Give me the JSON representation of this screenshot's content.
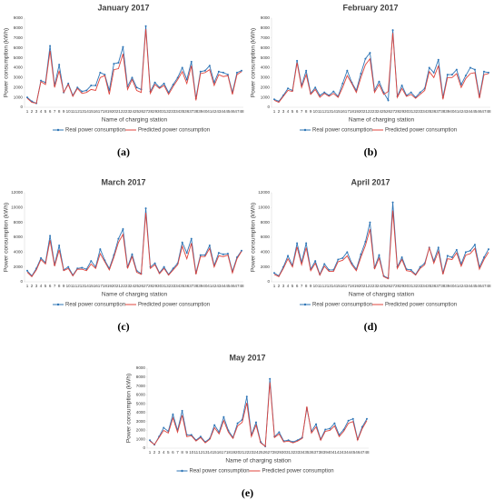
{
  "chart_data": [
    {
      "type": "line",
      "title": "January 2017",
      "xlabel": "Name of charging station",
      "ylabel": "Power consumption (kWh)",
      "label": "(a)",
      "categories": [
        "1",
        "2",
        "3",
        "4",
        "5",
        "6",
        "7",
        "8",
        "9",
        "10",
        "11",
        "12",
        "13",
        "14",
        "15",
        "16",
        "17",
        "18",
        "19",
        "20",
        "21",
        "22",
        "23",
        "24",
        "25",
        "26",
        "27",
        "28",
        "29",
        "30",
        "31",
        "32",
        "33",
        "34",
        "35",
        "36",
        "37",
        "38",
        "39",
        "40",
        "41",
        "42",
        "43",
        "44",
        "45",
        "46",
        "47",
        "48"
      ],
      "series": [
        {
          "name": "Real power consumption",
          "color": "#2e75b6",
          "values": [
            1000,
            600,
            400,
            2700,
            2500,
            6200,
            2200,
            4300,
            1500,
            2400,
            1200,
            2000,
            1600,
            1700,
            2200,
            2200,
            3500,
            3300,
            1700,
            4400,
            4500,
            6100,
            2100,
            3000,
            2000,
            1800,
            8200,
            1600,
            2500,
            2000,
            2400,
            1500,
            2300,
            3000,
            4000,
            2800,
            4600,
            900,
            3600,
            3700,
            4200,
            2500,
            3600,
            3500,
            3300,
            1500,
            3500,
            3700
          ]
        },
        {
          "name": "Predicted power consumption",
          "color": "#e0443c",
          "values": [
            900,
            500,
            400,
            2600,
            2300,
            5700,
            2000,
            3700,
            1500,
            2300,
            1100,
            1900,
            1400,
            1500,
            1800,
            1700,
            3000,
            3200,
            1300,
            3800,
            3900,
            5400,
            1800,
            2800,
            1700,
            1500,
            7900,
            1400,
            2300,
            1900,
            2200,
            1300,
            2100,
            2800,
            3600,
            2400,
            4200,
            700,
            3400,
            3500,
            3800,
            2200,
            3300,
            3100,
            3200,
            1300,
            3300,
            3600
          ]
        }
      ],
      "ylim": [
        0,
        9000
      ],
      "yticks": [
        0,
        1000,
        2000,
        3000,
        4000,
        5000,
        6000,
        7000,
        8000,
        9000
      ],
      "grid": false
    },
    {
      "type": "line",
      "title": "February 2017",
      "xlabel": "Name of charging station",
      "ylabel": "Power consumption (kWh)",
      "label": "(b)",
      "categories": [
        "1",
        "2",
        "3",
        "4",
        "5",
        "6",
        "7",
        "8",
        "9",
        "10",
        "11",
        "12",
        "13",
        "14",
        "15",
        "16",
        "17",
        "18",
        "19",
        "20",
        "21",
        "22",
        "23",
        "24",
        "25",
        "26",
        "27",
        "28",
        "29",
        "30",
        "31",
        "32",
        "33",
        "34",
        "35",
        "36",
        "37",
        "38",
        "39",
        "40",
        "41",
        "42",
        "43",
        "44",
        "45",
        "46",
        "47",
        "48"
      ],
      "series": [
        {
          "name": "Real power consumption",
          "color": "#2e75b6",
          "values": [
            800,
            600,
            1200,
            1900,
            1700,
            4700,
            2200,
            3700,
            1400,
            2000,
            1200,
            1500,
            1200,
            1600,
            1100,
            2400,
            3700,
            2500,
            1700,
            3400,
            4900,
            5500,
            1700,
            2600,
            1500,
            700,
            7800,
            1100,
            2200,
            1200,
            1500,
            1000,
            1500,
            1900,
            4000,
            3500,
            4800,
            1000,
            3300,
            3300,
            3800,
            2300,
            3200,
            4000,
            3800,
            1100,
            3600,
            3500
          ]
        },
        {
          "name": "Predicted power consumption",
          "color": "#e0443c",
          "values": [
            700,
            500,
            1100,
            1700,
            1600,
            4500,
            2000,
            3300,
            1300,
            1800,
            1000,
            1400,
            1100,
            1400,
            1000,
            2000,
            3200,
            2400,
            1500,
            3000,
            4300,
            4900,
            1500,
            2300,
            1300,
            1600,
            7500,
            1000,
            1900,
            1100,
            1300,
            900,
            1300,
            1700,
            3600,
            3000,
            4200,
            800,
            3000,
            3000,
            3400,
            2000,
            2900,
            3400,
            3500,
            900,
            3300,
            3400
          ]
        }
      ],
      "ylim": [
        0,
        9000
      ],
      "yticks": [
        0,
        1000,
        2000,
        3000,
        4000,
        5000,
        6000,
        7000,
        8000,
        9000
      ],
      "grid": false
    },
    {
      "type": "line",
      "title": "March 2017",
      "xlabel": "Name of charging station",
      "ylabel": "Power consumption (kWh)",
      "label": "(c)",
      "categories": [
        "1",
        "2",
        "3",
        "4",
        "5",
        "6",
        "7",
        "8",
        "9",
        "10",
        "11",
        "12",
        "13",
        "14",
        "15",
        "16",
        "17",
        "18",
        "19",
        "20",
        "21",
        "22",
        "23",
        "24",
        "25",
        "26",
        "27",
        "28",
        "29",
        "30",
        "31",
        "32",
        "33",
        "34",
        "35",
        "36",
        "37",
        "38",
        "39",
        "40",
        "41",
        "42",
        "43",
        "44",
        "45",
        "46",
        "47",
        "48"
      ],
      "series": [
        {
          "name": "Real power consumption",
          "color": "#2e75b6",
          "values": [
            1500,
            800,
            1800,
            3200,
            2600,
            6200,
            2300,
            4900,
            1600,
            2000,
            900,
            1800,
            1900,
            1700,
            2800,
            2000,
            4400,
            2900,
            1800,
            3600,
            5800,
            7100,
            2000,
            3700,
            1500,
            1100,
            9900,
            2000,
            2500,
            1200,
            2000,
            1000,
            1800,
            2500,
            5300,
            3900,
            5800,
            1200,
            3600,
            3600,
            4900,
            2200,
            3900,
            3700,
            3800,
            1400,
            3300,
            4200
          ]
        },
        {
          "name": "Predicted power consumption",
          "color": "#e0443c",
          "values": [
            1300,
            700,
            1600,
            3000,
            2400,
            5600,
            2100,
            4300,
            1500,
            1800,
            800,
            1700,
            1700,
            1500,
            2400,
            1800,
            3800,
            2700,
            1600,
            3300,
            5300,
            6400,
            1800,
            3400,
            1300,
            1000,
            9300,
            1800,
            2300,
            1100,
            1800,
            900,
            1600,
            2300,
            4800,
            3100,
            5200,
            1000,
            3400,
            3400,
            4500,
            2000,
            3500,
            3400,
            3600,
            1200,
            3100,
            4100
          ]
        }
      ],
      "ylim": [
        0,
        12000
      ],
      "yticks": [
        0,
        2000,
        4000,
        6000,
        8000,
        10000,
        12000
      ],
      "grid": false
    },
    {
      "type": "line",
      "title": "April 2017",
      "xlabel": "Name of charging station",
      "ylabel": "Power consumption (kWh)",
      "label": "(d)",
      "categories": [
        "1",
        "2",
        "3",
        "4",
        "5",
        "6",
        "7",
        "8",
        "9",
        "10",
        "11",
        "12",
        "13",
        "14",
        "15",
        "16",
        "17",
        "18",
        "19",
        "20",
        "21",
        "22",
        "23",
        "24",
        "25",
        "26",
        "27",
        "28",
        "29",
        "30",
        "31",
        "32",
        "33",
        "34",
        "35",
        "36",
        "37",
        "38",
        "39",
        "40",
        "41",
        "42",
        "43",
        "44",
        "45",
        "46",
        "47",
        "48"
      ],
      "series": [
        {
          "name": "Real power consumption",
          "color": "#2e75b6",
          "values": [
            1200,
            800,
            2000,
            3500,
            2200,
            5200,
            2600,
            5200,
            1700,
            2800,
            1000,
            2400,
            1600,
            1600,
            3000,
            3200,
            4000,
            2500,
            1700,
            3700,
            5400,
            8000,
            1900,
            3600,
            800,
            500,
            10700,
            2000,
            3300,
            1700,
            1600,
            1000,
            2000,
            2500,
            4600,
            2800,
            4600,
            1200,
            3500,
            3300,
            4300,
            2400,
            4000,
            4200,
            5000,
            2000,
            3300,
            4400
          ]
        },
        {
          "name": "Predicted power consumption",
          "color": "#e0443c",
          "values": [
            1000,
            700,
            1800,
            3100,
            2000,
            4700,
            2300,
            4600,
            1500,
            2500,
            900,
            2100,
            1400,
            1400,
            2700,
            2900,
            3500,
            2300,
            1500,
            3300,
            4900,
            7100,
            1700,
            3200,
            700,
            400,
            9600,
            1800,
            3000,
            1500,
            1400,
            900,
            1800,
            2300,
            4600,
            2500,
            4100,
            1000,
            3100,
            3000,
            3900,
            2100,
            3600,
            3800,
            4500,
            1700,
            3000,
            4000
          ]
        }
      ],
      "ylim": [
        0,
        12000
      ],
      "yticks": [
        0,
        2000,
        4000,
        6000,
        8000,
        10000,
        12000
      ],
      "grid": false
    },
    {
      "type": "line",
      "title": "May 2017",
      "xlabel": "Name of charging station",
      "ylabel": "Power consumption (kWh)",
      "label": "(e)",
      "categories": [
        "1",
        "2",
        "3",
        "4",
        "5",
        "6",
        "7",
        "8",
        "9",
        "10",
        "11",
        "12",
        "13",
        "14",
        "15",
        "16",
        "17",
        "18",
        "19",
        "20",
        "21",
        "22",
        "23",
        "24",
        "25",
        "26",
        "27",
        "28",
        "29",
        "30",
        "31",
        "32",
        "33",
        "34",
        "35",
        "36",
        "37",
        "38",
        "39",
        "40",
        "41",
        "42",
        "43",
        "44",
        "45",
        "46",
        "47",
        "48"
      ],
      "series": [
        {
          "name": "Real power consumption",
          "color": "#2e75b6",
          "values": [
            900,
            400,
            1300,
            2300,
            1900,
            3800,
            2000,
            4200,
            1500,
            1500,
            900,
            1300,
            700,
            1100,
            2600,
            1800,
            3500,
            2000,
            1200,
            2800,
            3200,
            5800,
            1500,
            2900,
            700,
            200,
            7800,
            1300,
            1800,
            800,
            900,
            700,
            900,
            1200,
            4500,
            1900,
            2700,
            1000,
            2100,
            2200,
            2800,
            1500,
            2100,
            3100,
            3300,
            1000,
            2400,
            3300
          ]
        },
        {
          "name": "Predicted power consumption",
          "color": "#e0443c",
          "values": [
            800,
            400,
            1200,
            2000,
            1700,
            3400,
            1800,
            3700,
            1300,
            1400,
            800,
            1200,
            600,
            1000,
            2300,
            1600,
            3100,
            1800,
            1100,
            2500,
            2900,
            5100,
            1300,
            2600,
            600,
            200,
            7400,
            1200,
            1600,
            700,
            800,
            600,
            800,
            1100,
            4700,
            1700,
            2400,
            900,
            1900,
            2000,
            2500,
            1300,
            1900,
            2800,
            3000,
            900,
            2200,
            3100
          ]
        }
      ],
      "ylim": [
        0,
        9000
      ],
      "yticks": [
        0,
        1000,
        2000,
        3000,
        4000,
        5000,
        6000,
        7000,
        8000,
        9000
      ],
      "grid": false
    }
  ]
}
